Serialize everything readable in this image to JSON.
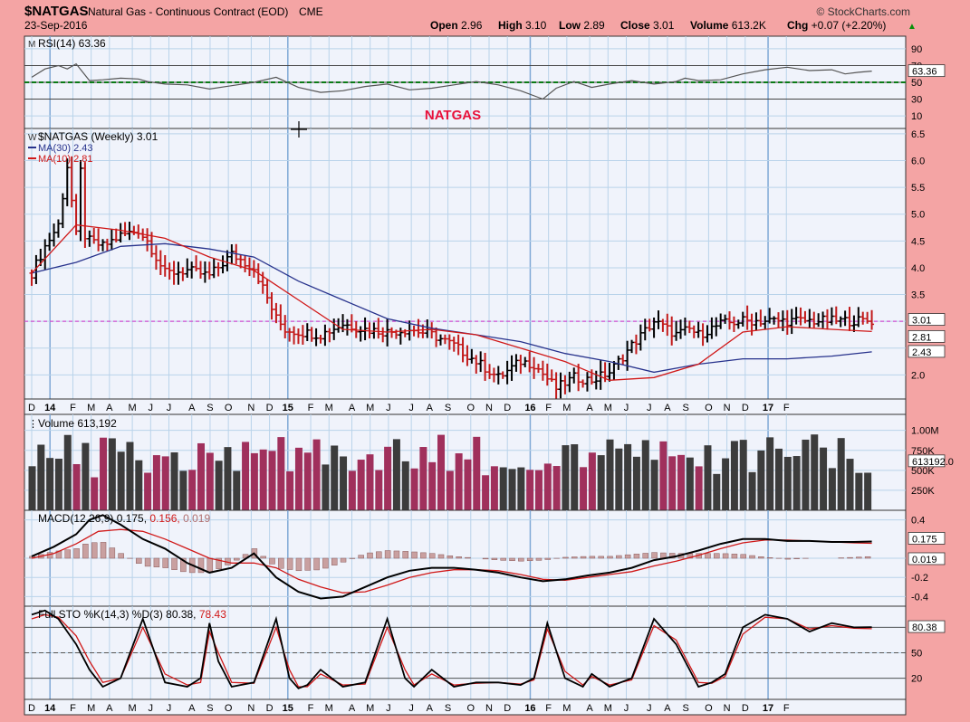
{
  "header": {
    "symbol": "$NATGAS",
    "name": "Natural Gas - Continuous Contract (EOD)",
    "exchange": "CME",
    "date": "23-Sep-2016",
    "brand": "© StockCharts.com",
    "quote": [
      {
        "label": "Open",
        "value": "2.96"
      },
      {
        "label": "High",
        "value": "3.10"
      },
      {
        "label": "Low",
        "value": "2.89"
      },
      {
        "label": "Close",
        "value": "3.01"
      },
      {
        "label": "Volume",
        "value": "613.2K"
      },
      {
        "label": "Chg",
        "value": "+0.07 (+2.20%)"
      }
    ],
    "chg_arrow": "▲"
  },
  "annotation": "NATGAS",
  "colors": {
    "background": "#f4a4a4",
    "panel": "#f0f3fb",
    "grid": "#b9d3ea",
    "up": "#000000",
    "down": "#c21a1a",
    "ma30": "#27328c",
    "ma10": "#d01818",
    "volume_up": "#3c3c3c",
    "volume_down": "#a0305c",
    "dashed_green": "#0b7a16",
    "magenta": "#d050d0"
  },
  "chart_data": [
    {
      "type": "line",
      "panel": "rsi",
      "legend": "RSI(14) 63.36",
      "ylim": [
        0,
        100
      ],
      "yticks": [
        90,
        70,
        50,
        30,
        10
      ],
      "levels": [
        70,
        50,
        30
      ],
      "last_label": "63.36",
      "x": [
        0,
        3,
        6,
        8,
        10,
        13,
        16,
        20,
        24,
        26,
        30,
        35,
        40,
        45,
        50,
        55,
        60,
        65,
        70,
        75,
        80,
        85,
        90,
        95,
        100,
        105,
        110,
        115,
        118,
        122,
        126,
        130,
        135,
        140,
        145,
        147,
        150,
        155,
        160,
        165,
        170,
        175,
        180,
        183,
        186,
        189
      ],
      "values": [
        56,
        66,
        70,
        66,
        72,
        52,
        53,
        55,
        54,
        51,
        48,
        47,
        42,
        46,
        50,
        56,
        44,
        38,
        40,
        45,
        48,
        41,
        43,
        47,
        51,
        47,
        40,
        30,
        43,
        51,
        44,
        48,
        52,
        48,
        51,
        55,
        52,
        53,
        60,
        65,
        68,
        64,
        65,
        60,
        62,
        63.36
      ]
    },
    {
      "type": "bar",
      "panel": "price",
      "legend": [
        "$NATGAS (Weekly) 3.01",
        "MA(30) 2.43",
        "MA(10) 2.81"
      ],
      "yticks": [
        6.5,
        6.0,
        5.5,
        5.0,
        4.5,
        4.0,
        3.5,
        3.0,
        2.5,
        2.0
      ],
      "ylim": [
        1.55,
        6.6
      ],
      "last_labels": [
        "3.01",
        "2.81",
        "2.43"
      ],
      "reference_line": 3.0,
      "x_labels": [
        "D",
        "14",
        "F",
        "M",
        "A",
        "M",
        "J",
        "J",
        "A",
        "S",
        "O",
        "N",
        "D",
        "15",
        "F",
        "M",
        "A",
        "M",
        "J",
        "J",
        "A",
        "S",
        "O",
        "N",
        "D",
        "16",
        "F",
        "M",
        "A",
        "M",
        "J",
        "J",
        "A",
        "S",
        "O",
        "N",
        "D",
        "17",
        "F"
      ],
      "close_path": {
        "x": [
          0,
          3,
          6,
          8,
          10,
          11,
          12,
          13,
          16,
          20,
          24,
          26,
          30,
          35,
          40,
          45,
          50,
          55,
          57,
          60,
          65,
          70,
          75,
          80,
          85,
          90,
          95,
          100,
          105,
          110,
          113,
          118,
          122,
          126,
          130,
          135,
          140,
          145,
          148,
          150,
          155,
          160,
          165,
          170,
          175,
          180,
          183,
          186,
          189
        ],
        "values": [
          3.9,
          4.4,
          4.8,
          5.9,
          4.6,
          5.8,
          4.6,
          4.5,
          4.4,
          4.6,
          4.7,
          4.5,
          3.9,
          3.95,
          3.85,
          4.25,
          4.0,
          3.05,
          2.85,
          2.8,
          2.75,
          2.95,
          2.85,
          2.8,
          2.85,
          2.75,
          2.55,
          2.25,
          1.95,
          2.25,
          2.2,
          1.75,
          1.95,
          1.9,
          2.05,
          2.55,
          3.0,
          2.75,
          2.85,
          2.75,
          2.95,
          3.01,
          3.01,
          3.01,
          3.01,
          3.01,
          3.01,
          3.01,
          3.01
        ]
      },
      "ma30": {
        "x": [
          0,
          10,
          20,
          30,
          40,
          50,
          60,
          70,
          80,
          90,
          100,
          110,
          120,
          130,
          140,
          150,
          160,
          170,
          180,
          189
        ],
        "values": [
          3.9,
          4.1,
          4.4,
          4.45,
          4.35,
          4.2,
          3.75,
          3.4,
          3.05,
          2.87,
          2.75,
          2.62,
          2.4,
          2.25,
          2.05,
          2.2,
          2.3,
          2.3,
          2.35,
          2.43
        ]
      },
      "ma10": {
        "x": [
          0,
          10,
          20,
          30,
          40,
          50,
          60,
          70,
          80,
          90,
          100,
          110,
          120,
          130,
          140,
          150,
          160,
          170,
          180,
          189
        ],
        "values": [
          3.9,
          4.8,
          4.7,
          4.55,
          4.2,
          3.95,
          3.4,
          2.85,
          2.8,
          2.85,
          2.75,
          2.5,
          2.25,
          1.9,
          1.95,
          2.2,
          2.8,
          2.9,
          2.85,
          2.81
        ]
      }
    },
    {
      "type": "bar",
      "panel": "volume",
      "legend": "Volume 613,192",
      "yticks": [
        "1.00M",
        "750K",
        "500K",
        "250K"
      ],
      "ylim": [
        0,
        1200000
      ],
      "last_label": "613192.0"
    },
    {
      "type": "line",
      "panel": "macd",
      "legend": [
        "MACD(12,26,9)",
        "0.175",
        "0.156",
        "0.019"
      ],
      "yticks": [
        0.4,
        0.0,
        -0.2,
        -0.4
      ],
      "ylim": [
        -0.5,
        0.5
      ],
      "last_labels": [
        "0.175",
        "0.019"
      ],
      "macd": {
        "x": [
          0,
          5,
          10,
          13,
          16,
          20,
          25,
          30,
          35,
          40,
          45,
          50,
          55,
          60,
          65,
          70,
          75,
          80,
          85,
          90,
          95,
          100,
          105,
          110,
          115,
          120,
          125,
          130,
          135,
          140,
          145,
          150,
          155,
          160,
          165,
          170,
          175,
          180,
          185,
          189
        ],
        "values": [
          0.02,
          0.12,
          0.25,
          0.4,
          0.45,
          0.35,
          0.2,
          0.1,
          -0.05,
          -0.15,
          -0.1,
          0.05,
          -0.2,
          -0.35,
          -0.42,
          -0.4,
          -0.3,
          -0.2,
          -0.13,
          -0.1,
          -0.1,
          -0.12,
          -0.15,
          -0.2,
          -0.24,
          -0.22,
          -0.18,
          -0.15,
          -0.1,
          -0.02,
          0.02,
          0.08,
          0.15,
          0.2,
          0.2,
          0.18,
          0.18,
          0.17,
          0.17,
          0.175
        ]
      },
      "signal": {
        "x": [
          0,
          5,
          10,
          15,
          20,
          25,
          30,
          35,
          40,
          45,
          50,
          55,
          60,
          65,
          70,
          75,
          80,
          85,
          90,
          95,
          100,
          105,
          110,
          115,
          120,
          125,
          130,
          135,
          140,
          145,
          150,
          155,
          160,
          165,
          170,
          175,
          180,
          185,
          189
        ],
        "values": [
          0.0,
          0.05,
          0.15,
          0.28,
          0.3,
          0.28,
          0.2,
          0.1,
          0.0,
          -0.05,
          -0.05,
          -0.1,
          -0.22,
          -0.3,
          -0.36,
          -0.35,
          -0.28,
          -0.2,
          -0.15,
          -0.12,
          -0.12,
          -0.13,
          -0.17,
          -0.22,
          -0.23,
          -0.2,
          -0.17,
          -0.14,
          -0.08,
          -0.03,
          0.03,
          0.1,
          0.16,
          0.19,
          0.19,
          0.18,
          0.17,
          0.16,
          0.156
        ]
      },
      "histogram_last": 0.019
    },
    {
      "type": "line",
      "panel": "stochastic",
      "legend": [
        "Full STO %K(14,3) %D(3)",
        "80.38",
        "78.43"
      ],
      "yticks": [
        80,
        50,
        20
      ],
      "ylim": [
        0,
        100
      ],
      "levels": [
        80,
        50,
        20
      ],
      "last_labels": [
        "80.38"
      ],
      "k": {
        "x": [
          0,
          3,
          6,
          10,
          13,
          16,
          20,
          25,
          30,
          35,
          38,
          40,
          42,
          45,
          50,
          55,
          58,
          60,
          62,
          65,
          70,
          75,
          80,
          84,
          86,
          90,
          95,
          100,
          105,
          110,
          113,
          116,
          120,
          124,
          126,
          130,
          135,
          140,
          145,
          150,
          153,
          156,
          160,
          165,
          170,
          175,
          180,
          185,
          189
        ],
        "values": [
          95,
          100,
          90,
          60,
          30,
          10,
          20,
          90,
          15,
          10,
          20,
          85,
          40,
          10,
          15,
          90,
          20,
          8,
          12,
          30,
          10,
          15,
          90,
          20,
          10,
          30,
          10,
          15,
          15,
          12,
          20,
          85,
          20,
          10,
          25,
          10,
          20,
          90,
          60,
          10,
          15,
          25,
          80,
          95,
          90,
          75,
          85,
          80,
          80.38
        ]
      },
      "d": {
        "x": [
          0,
          3,
          6,
          10,
          13,
          16,
          20,
          25,
          30,
          35,
          38,
          40,
          42,
          45,
          50,
          55,
          58,
          60,
          62,
          65,
          70,
          75,
          80,
          84,
          86,
          90,
          95,
          100,
          105,
          110,
          113,
          116,
          120,
          124,
          126,
          130,
          135,
          140,
          145,
          150,
          153,
          156,
          160,
          165,
          170,
          175,
          180,
          185,
          189
        ],
        "values": [
          90,
          95,
          92,
          70,
          40,
          15,
          20,
          80,
          25,
          12,
          15,
          75,
          50,
          15,
          14,
          80,
          30,
          10,
          10,
          25,
          12,
          13,
          80,
          30,
          12,
          25,
          12,
          14,
          15,
          13,
          18,
          78,
          28,
          12,
          22,
          12,
          18,
          82,
          65,
          15,
          14,
          22,
          72,
          92,
          90,
          78,
          82,
          79,
          78.43
        ]
      }
    }
  ]
}
